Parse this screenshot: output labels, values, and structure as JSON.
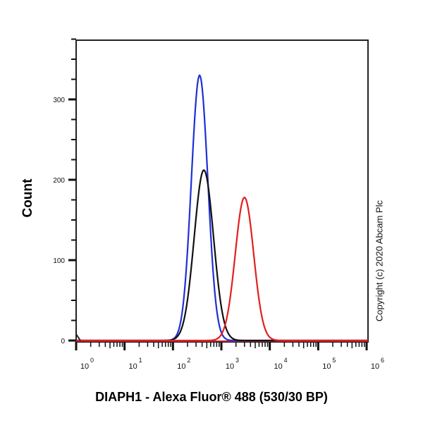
{
  "chart_data": {
    "type": "line",
    "title": "",
    "xlabel": "DIAPH1 - Alexa Fluor® 488 (530/30 BP)",
    "ylabel": "Count",
    "xscale": "log",
    "xlim": [
      1,
      1000000
    ],
    "ylim": [
      0,
      375
    ],
    "x_tick_labels": [
      "10^0",
      "10^1",
      "10^2",
      "10^3",
      "10^4",
      "10^5",
      "10^6"
    ],
    "y_tick_labels": [
      "0",
      "100",
      "200",
      "300"
    ],
    "y_ticks": [
      0,
      100,
      200,
      300
    ],
    "grid": false,
    "legend": null,
    "annotation": "Copyright (c) 2020 Abcam Plc",
    "series": [
      {
        "name": "blue",
        "color": "#1f2fd6",
        "peak_x": 355,
        "peak_y": 330,
        "log_sigma": 0.17
      },
      {
        "name": "black",
        "color": "#111111",
        "peak_x": 435,
        "peak_y": 212,
        "log_sigma": 0.2
      },
      {
        "name": "red",
        "color": "#e0201e",
        "peak_x": 3000,
        "peak_y": 178,
        "log_sigma": 0.19
      }
    ]
  },
  "labels": {
    "ylabel": "Count",
    "xlabel": "DIAPH1 - Alexa Fluor® 488 (530/30 BP)",
    "copyright": "Copyright (c) 2020 Abcam Plc"
  }
}
